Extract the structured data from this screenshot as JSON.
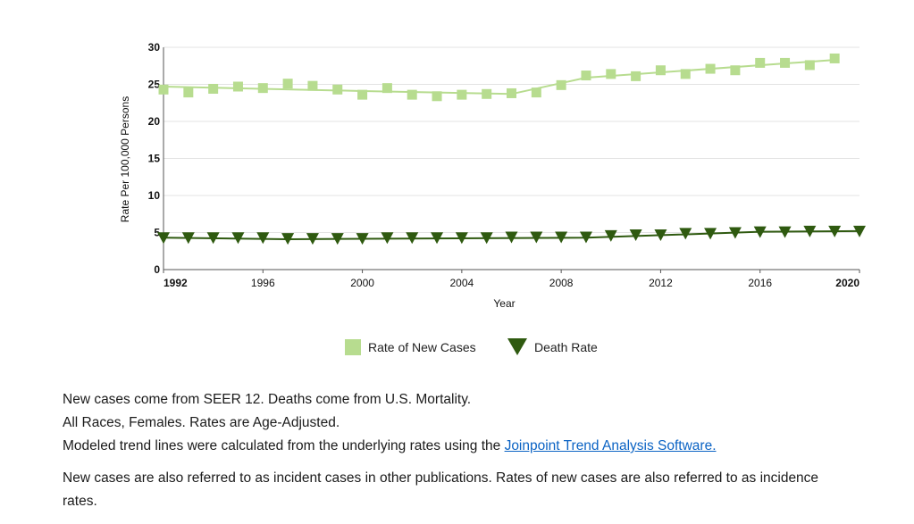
{
  "chart_data": {
    "type": "line",
    "title": "",
    "xlabel": "Year",
    "ylabel": "Rate Per 100,000 Persons",
    "xlim": [
      1992,
      2020
    ],
    "ylim": [
      0,
      30
    ],
    "yticks": [
      0,
      5,
      10,
      15,
      20,
      25,
      30
    ],
    "xticks": [
      1992,
      1996,
      2000,
      2004,
      2008,
      2012,
      2016,
      2020
    ],
    "grid": true,
    "legend": "bottom-center",
    "series": [
      {
        "name": "Rate of New Cases",
        "marker": "square",
        "color": "#b7dc8f",
        "x": [
          1992,
          1993,
          1994,
          1995,
          1996,
          1997,
          1998,
          1999,
          2000,
          2001,
          2002,
          2003,
          2004,
          2005,
          2006,
          2007,
          2008,
          2009,
          2010,
          2011,
          2012,
          2013,
          2014,
          2015,
          2016,
          2017,
          2018,
          2019
        ],
        "values": [
          24.3,
          23.9,
          24.4,
          24.7,
          24.5,
          25.1,
          24.8,
          24.3,
          23.6,
          24.5,
          23.6,
          23.4,
          23.6,
          23.7,
          23.8,
          23.9,
          24.9,
          26.2,
          26.4,
          26.1,
          26.9,
          26.4,
          27.1,
          26.9,
          27.9,
          27.9,
          27.6,
          28.5
        ],
        "trend": [
          [
            1992,
            24.7
          ],
          [
            2000,
            24.1
          ],
          [
            2006,
            23.7
          ],
          [
            2009,
            25.9
          ],
          [
            2019,
            28.3
          ]
        ]
      },
      {
        "name": "Death Rate",
        "marker": "triangle-down",
        "color": "#2f5a10",
        "x": [
          1992,
          1993,
          1994,
          1995,
          1996,
          1997,
          1998,
          1999,
          2000,
          2001,
          2002,
          2003,
          2004,
          2005,
          2006,
          2007,
          2008,
          2009,
          2010,
          2011,
          2012,
          2013,
          2014,
          2015,
          2016,
          2017,
          2018,
          2019,
          2020
        ],
        "values": [
          4.3,
          4.3,
          4.3,
          4.3,
          4.3,
          4.2,
          4.2,
          4.2,
          4.2,
          4.3,
          4.3,
          4.3,
          4.3,
          4.3,
          4.4,
          4.4,
          4.4,
          4.4,
          4.6,
          4.7,
          4.7,
          4.9,
          4.9,
          5.0,
          5.1,
          5.1,
          5.2,
          5.2,
          5.2
        ],
        "trend": [
          [
            1992,
            4.3
          ],
          [
            1997,
            4.1
          ],
          [
            2009,
            4.3
          ],
          [
            2016,
            5.1
          ],
          [
            2020,
            5.2
          ]
        ]
      }
    ]
  },
  "notes": {
    "line1": "New cases come from SEER 12. Deaths come from U.S. Mortality.",
    "line2": "All Races, Females. Rates are Age-Adjusted.",
    "line3_prefix": "Modeled trend lines were calculated from the underlying rates using the ",
    "line3_link": "Joinpoint Trend Analysis Software.",
    "para2": "New cases are also referred to as incident cases in other publications. Rates of new cases are also referred to as incidence rates."
  },
  "colors": {
    "grid": "#e3e3e3",
    "axis": "#555555",
    "link": "#0b63c4"
  }
}
